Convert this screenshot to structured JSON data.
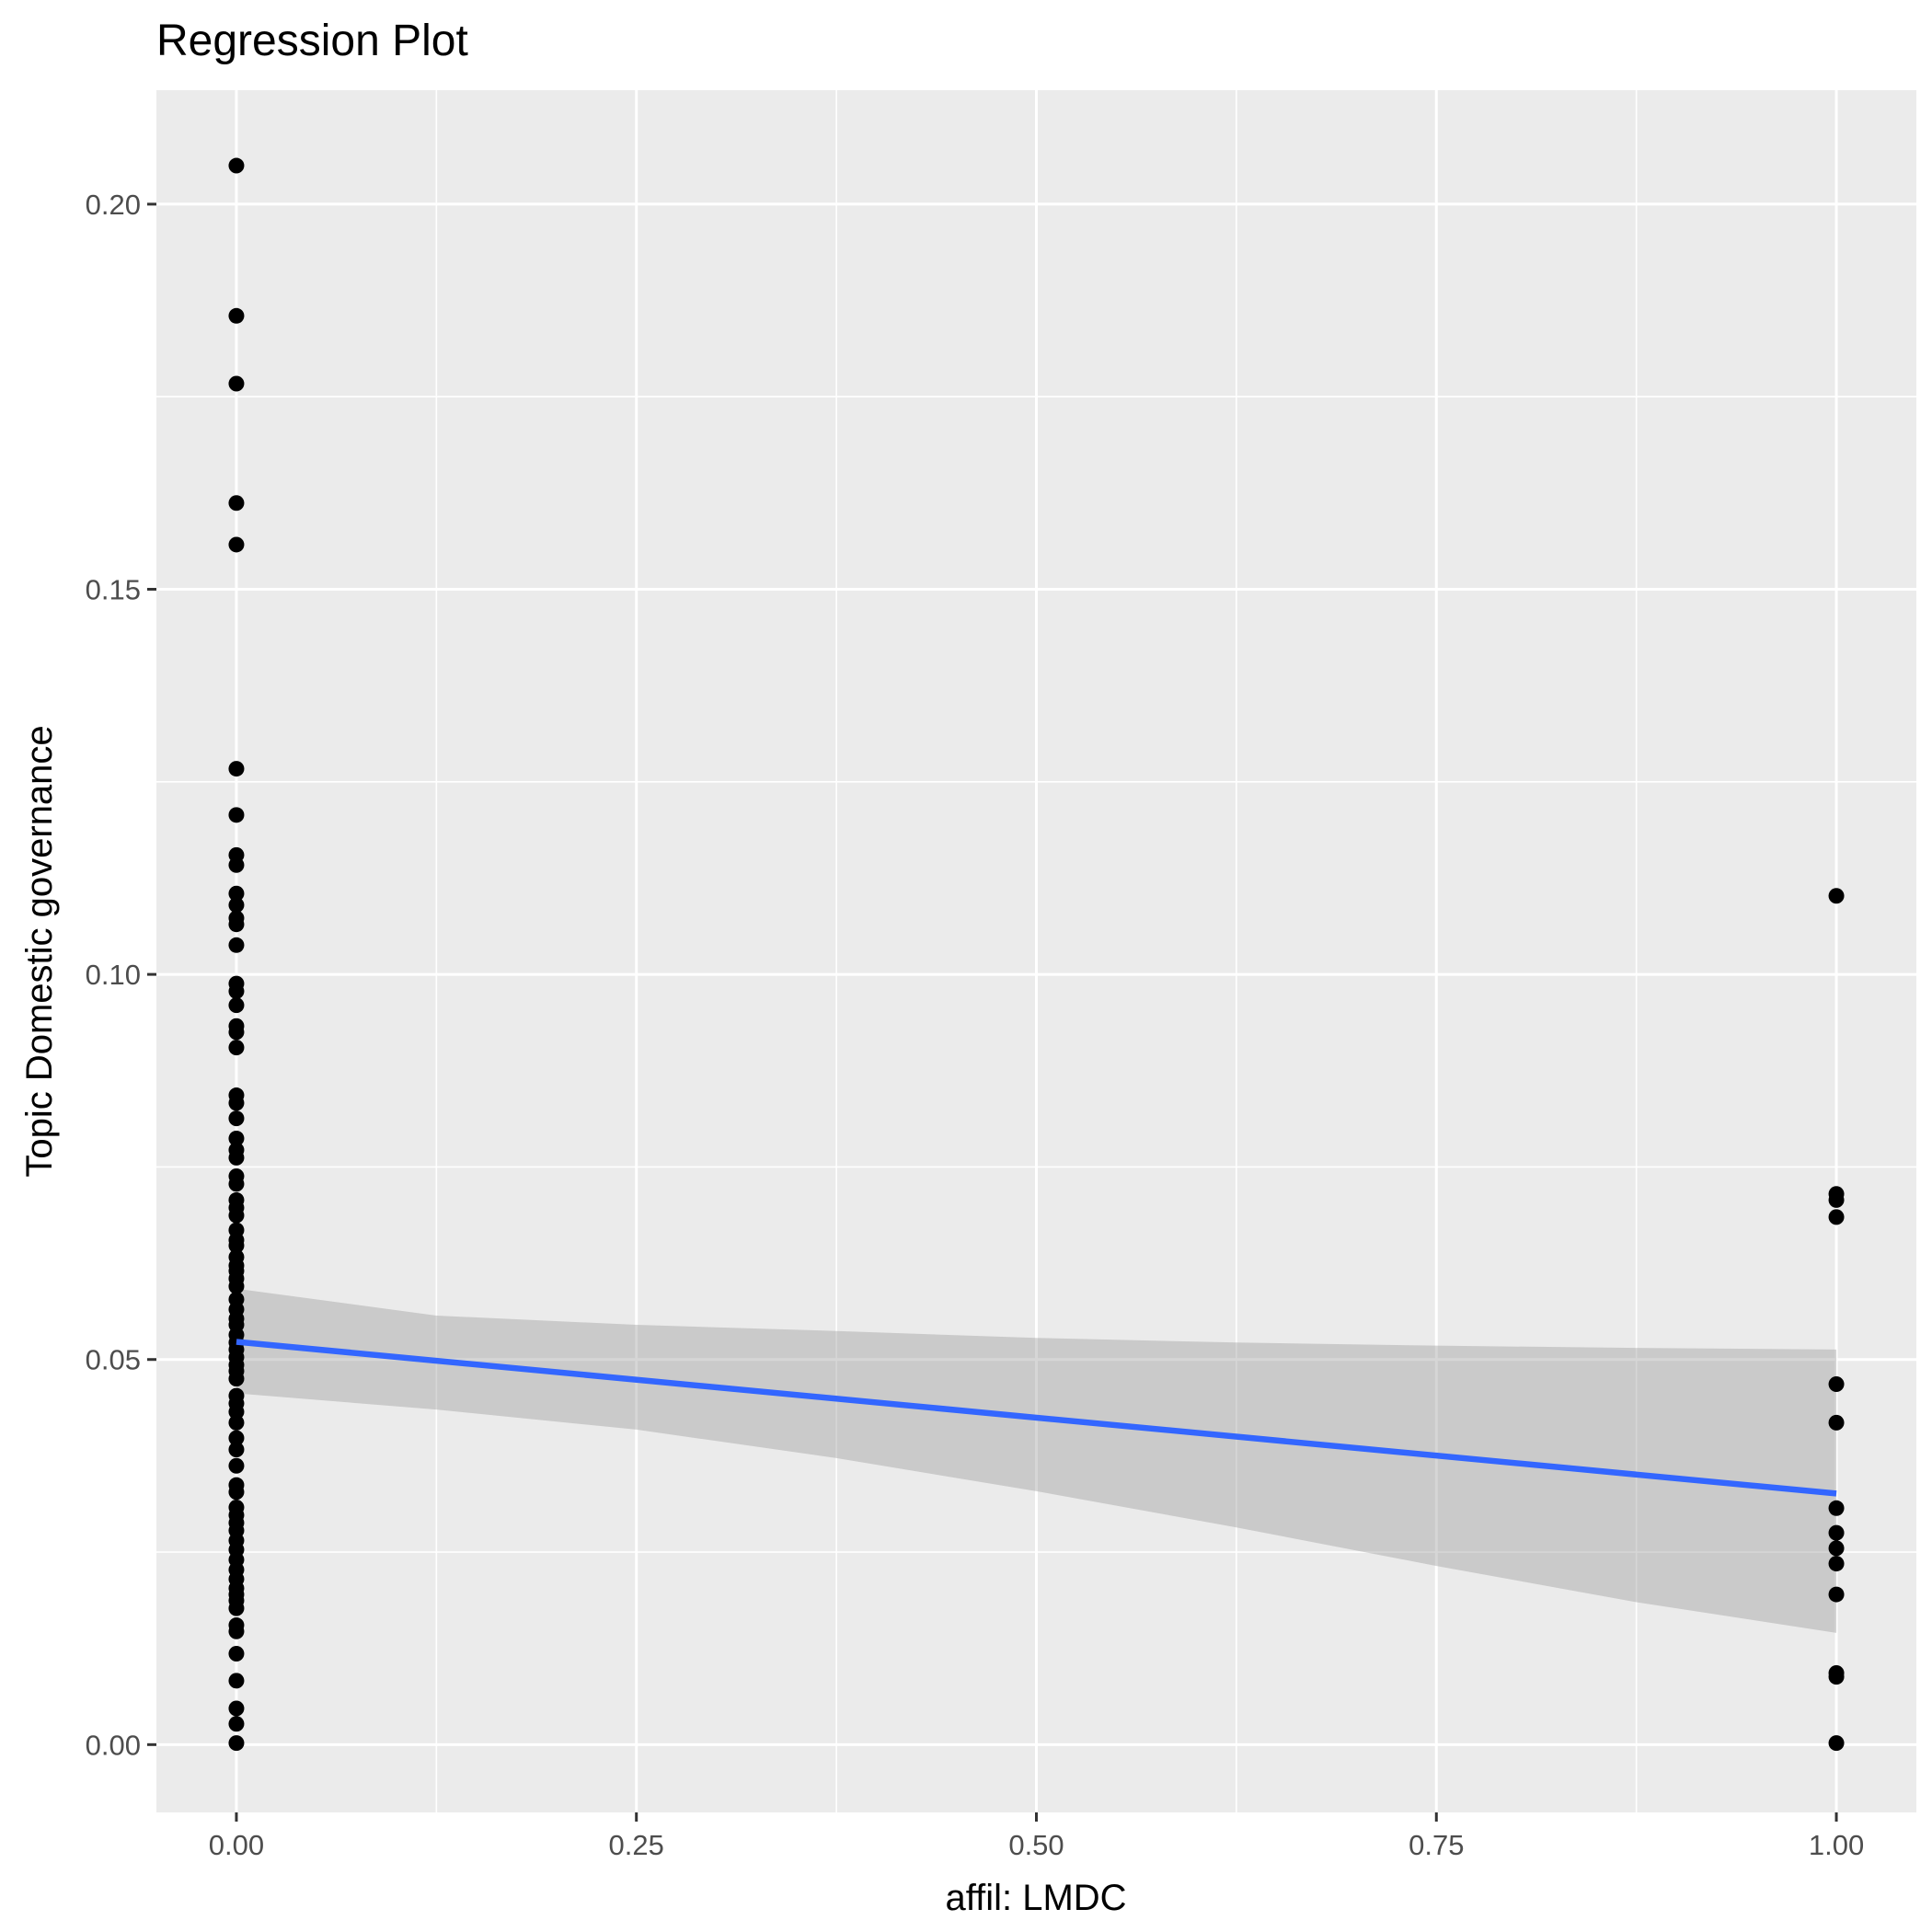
{
  "chart_data": {
    "type": "scatter",
    "title": "Regression Plot",
    "xlabel": "affil: LMDC",
    "ylabel": "Topic Domestic governance",
    "xlim": [
      -0.05,
      1.05
    ],
    "ylim": [
      -0.0088,
      0.2148
    ],
    "x_ticks": [
      0,
      0.25,
      0.5,
      0.75,
      1
    ],
    "x_tick_labels": [
      "0.00",
      "0.25",
      "0.50",
      "0.75",
      "1.00"
    ],
    "y_ticks": [
      0,
      0.05,
      0.1,
      0.15,
      0.2
    ],
    "y_tick_labels": [
      "0.00",
      "0.05",
      "0.10",
      "0.15",
      "0.20"
    ],
    "grid": true,
    "legend": "none",
    "colors": {
      "panel_background": "#ebebeb",
      "grid_major": "#ffffff",
      "points": "#000000",
      "fit_line": "#3366ff",
      "confidence_band": "#999999"
    },
    "points_x0": [
      0.205,
      0.1855,
      0.1767,
      0.1612,
      0.1558,
      0.1267,
      0.1207,
      0.1155,
      0.1142,
      0.1105,
      0.109,
      0.1073,
      0.1065,
      0.1038,
      0.0988,
      0.0978,
      0.096,
      0.0933,
      0.0925,
      0.0905,
      0.0843,
      0.0833,
      0.0813,
      0.0787,
      0.0772,
      0.0762,
      0.0738,
      0.0728,
      0.0707,
      0.0697,
      0.0687,
      0.0668,
      0.0655,
      0.0648,
      0.0633,
      0.0622,
      0.0615,
      0.0605,
      0.0595,
      0.0578,
      0.0565,
      0.0553,
      0.0545,
      0.0532,
      0.0522,
      0.0513,
      0.0503,
      0.0493,
      0.0485,
      0.0475,
      0.0453,
      0.0443,
      0.0432,
      0.0418,
      0.0398,
      0.0383,
      0.0362,
      0.0337,
      0.0328,
      0.0308,
      0.0298,
      0.0288,
      0.0278,
      0.0265,
      0.0253,
      0.024,
      0.0227,
      0.0215,
      0.0203,
      0.0195,
      0.0187,
      0.0177,
      0.0155,
      0.0147,
      0.0118,
      0.0083,
      0.0047,
      0.0027,
      0.0002
    ],
    "points_x1": [
      0.1102,
      0.0715,
      0.0707,
      0.0685,
      0.0468,
      0.0418,
      0.0307,
      0.0275,
      0.0255,
      0.0235,
      0.0195,
      0.0093,
      0.0088,
      0.0002
    ],
    "fit_line": {
      "x": [
        0,
        1
      ],
      "y": [
        0.0523,
        0.0326
      ]
    },
    "confidence_band": {
      "x": [
        0,
        0.125,
        0.25,
        0.375,
        0.5,
        0.625,
        0.75,
        0.875,
        1
      ],
      "upper": [
        0.0592,
        0.0557,
        0.0545,
        0.0537,
        0.0528,
        0.0522,
        0.0518,
        0.0515,
        0.0513
      ],
      "lower": [
        0.0456,
        0.0435,
        0.0409,
        0.0372,
        0.0329,
        0.0282,
        0.0232,
        0.0185,
        0.0145
      ]
    }
  }
}
